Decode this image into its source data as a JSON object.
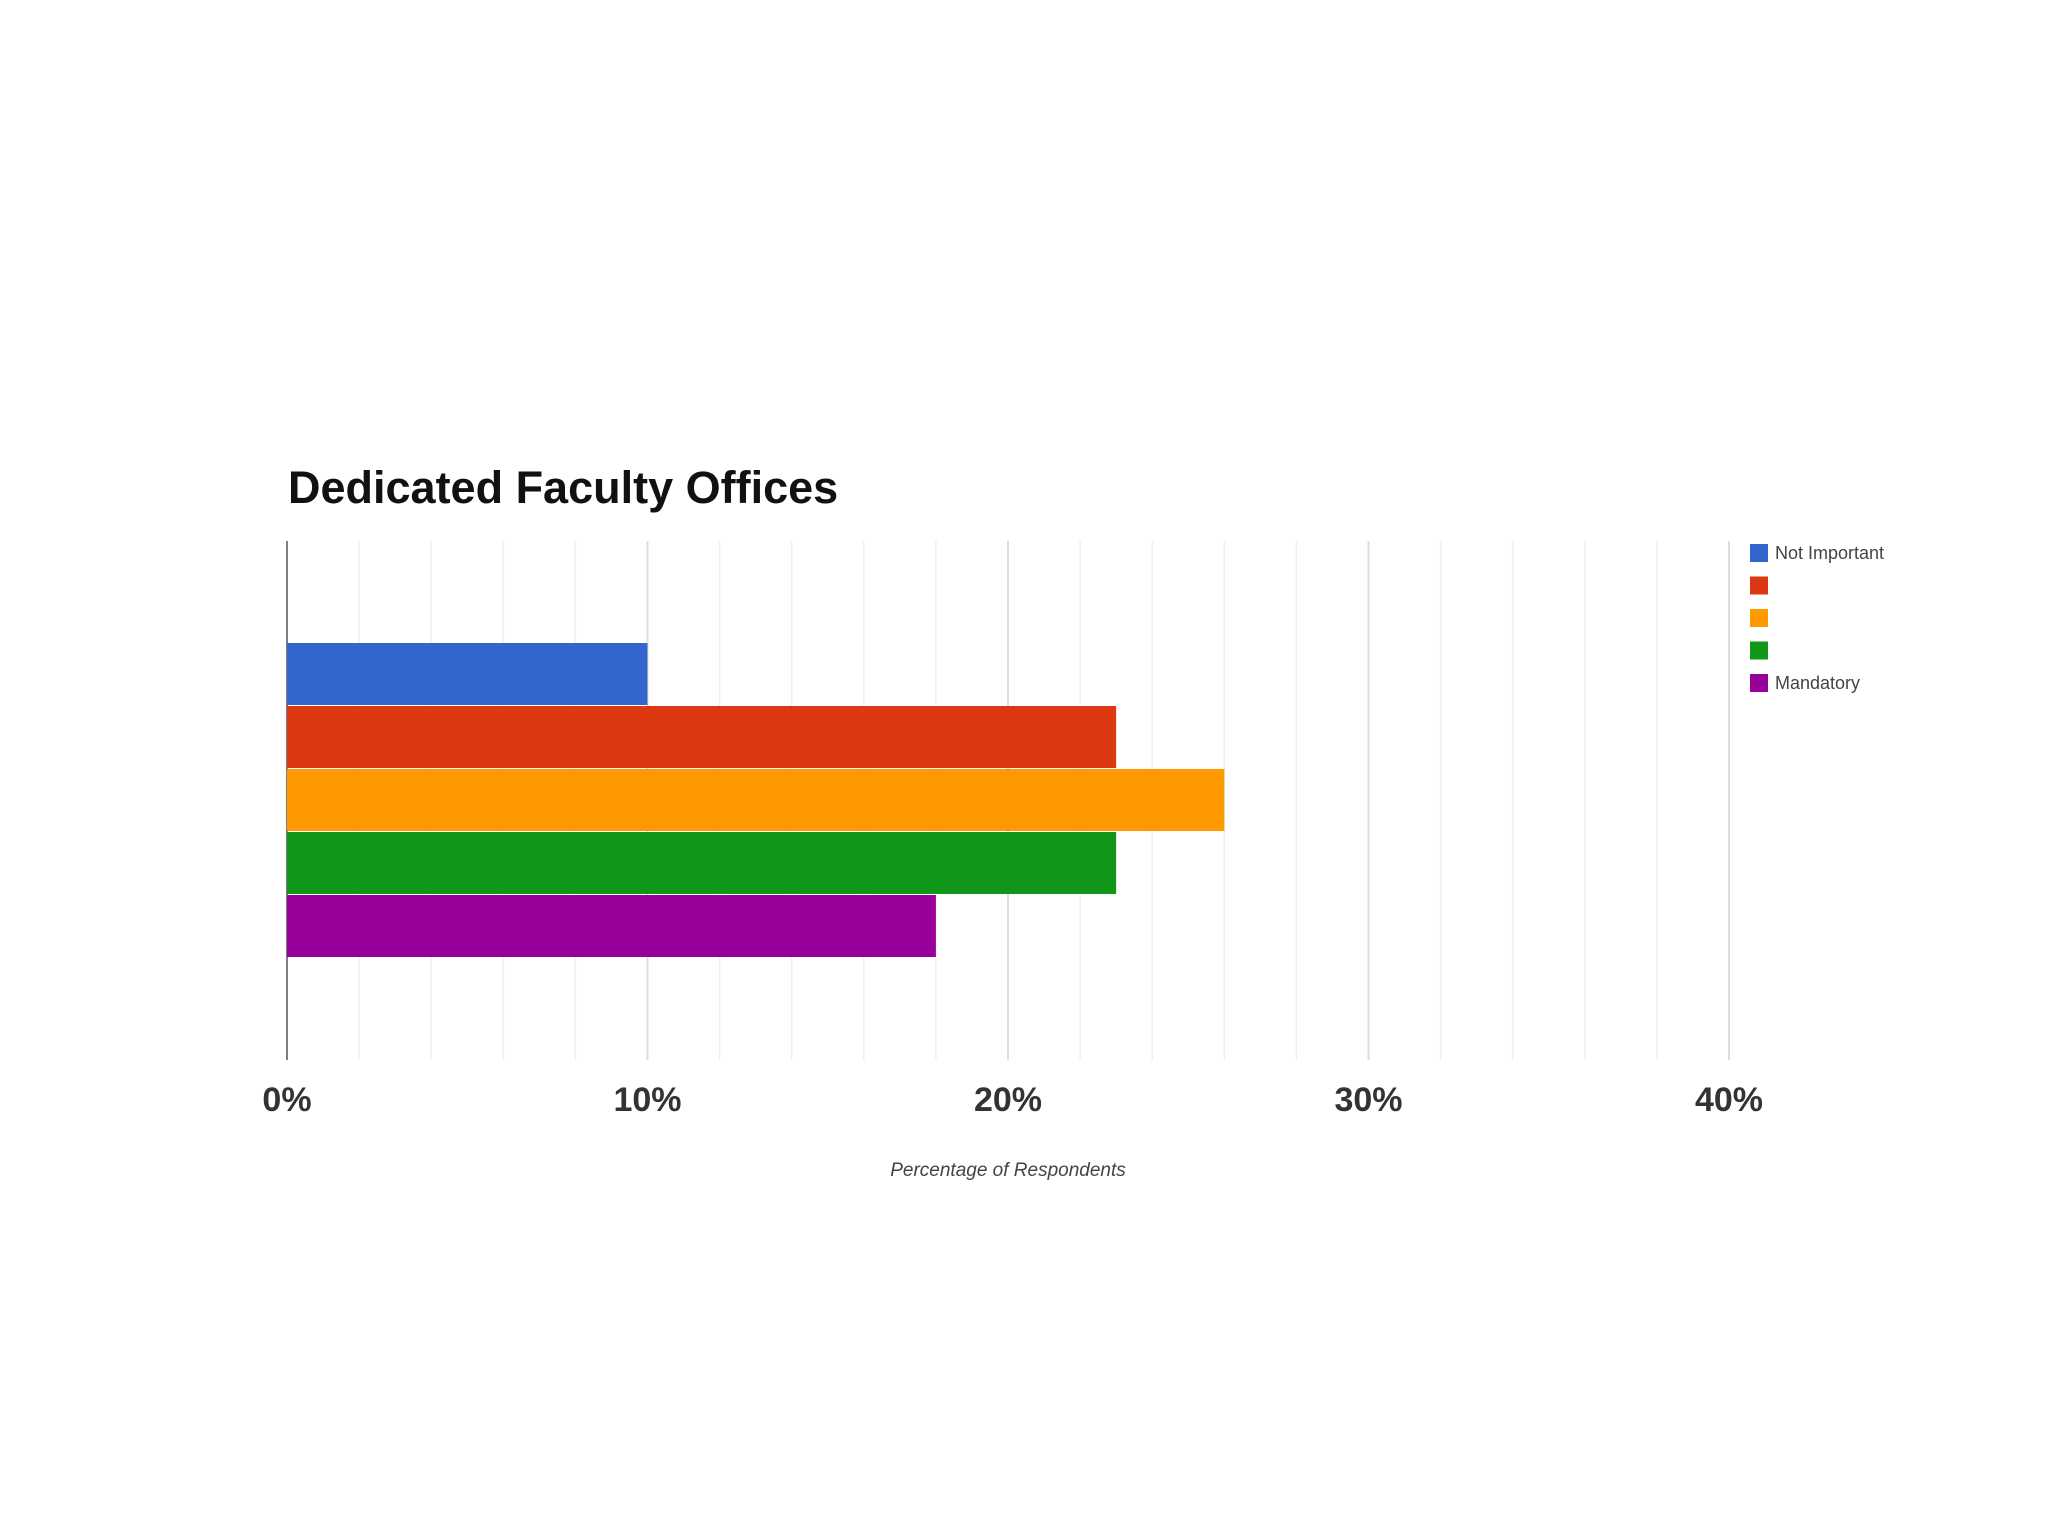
{
  "chart_data": {
    "type": "bar",
    "orientation": "horizontal",
    "title": "Dedicated Faculty Offices",
    "xlabel": "Percentage of Respondents",
    "ylabel": "",
    "xlim": [
      0,
      40
    ],
    "x_ticks": [
      "0%",
      "10%",
      "20%",
      "30%",
      "40%"
    ],
    "grid": true,
    "legend_position": "top-right",
    "series": [
      {
        "name": "Not Important",
        "value": 10,
        "color": "#3366cc"
      },
      {
        "name": "",
        "value": 23,
        "color": "#dc3912"
      },
      {
        "name": "",
        "value": 26,
        "color": "#ff9900"
      },
      {
        "name": "",
        "value": 23,
        "color": "#109618"
      },
      {
        "name": "Mandatory",
        "value": 18,
        "color": "#990099"
      }
    ]
  }
}
